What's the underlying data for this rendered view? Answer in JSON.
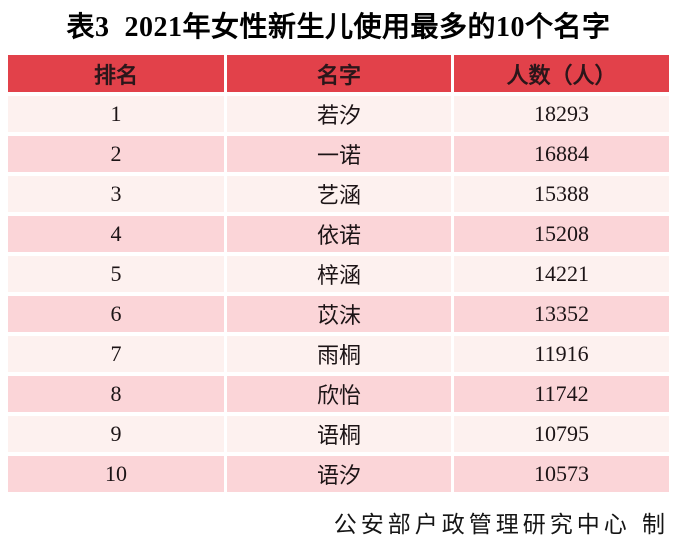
{
  "title": "表3  2021年女性新生儿使用最多的10个名字",
  "footer": "公安部户政管理研究中心 制",
  "chart_data": {
    "type": "table",
    "title": "表3 2021年女性新生儿使用最多的10个名字",
    "columns": [
      "排名",
      "名字",
      "人数（人）"
    ],
    "rows": [
      [
        1,
        "若汐",
        18293
      ],
      [
        2,
        "一诺",
        16884
      ],
      [
        3,
        "艺涵",
        15388
      ],
      [
        4,
        "依诺",
        15208
      ],
      [
        5,
        "梓涵",
        14221
      ],
      [
        6,
        "苡沫",
        13352
      ],
      [
        7,
        "雨桐",
        11916
      ],
      [
        8,
        "欣怡",
        11742
      ],
      [
        9,
        "语桐",
        10795
      ],
      [
        10,
        "语汐",
        10573
      ]
    ],
    "source_note": "公安部户政管理研究中心 制",
    "layout": {
      "header_style": "red band, bold dark text",
      "row_style": "alternating light/dark pink with white separators",
      "source_position": "bottom-right"
    }
  },
  "colors": {
    "header_bg": "#e2414a",
    "row_odd": "#fdf1ef",
    "row_even": "#fbd5d8",
    "header_text": "#2b161a",
    "body_text": "#1c1416",
    "page_bg": "#ffffff"
  }
}
